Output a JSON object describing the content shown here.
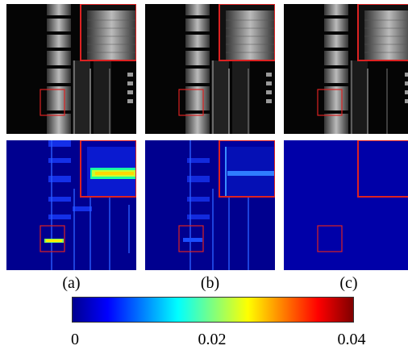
{
  "figure": {
    "captions": [
      "(a)",
      "(b)",
      "(c)"
    ],
    "colorbar": {
      "ticks": [
        "0",
        "0.02",
        "0.04"
      ],
      "min": 0,
      "max": 0.04,
      "colormap": "jet"
    },
    "highlight_box_color": "#dd2222",
    "rows": [
      "grayscale-reconstruction",
      "error-map"
    ]
  }
}
